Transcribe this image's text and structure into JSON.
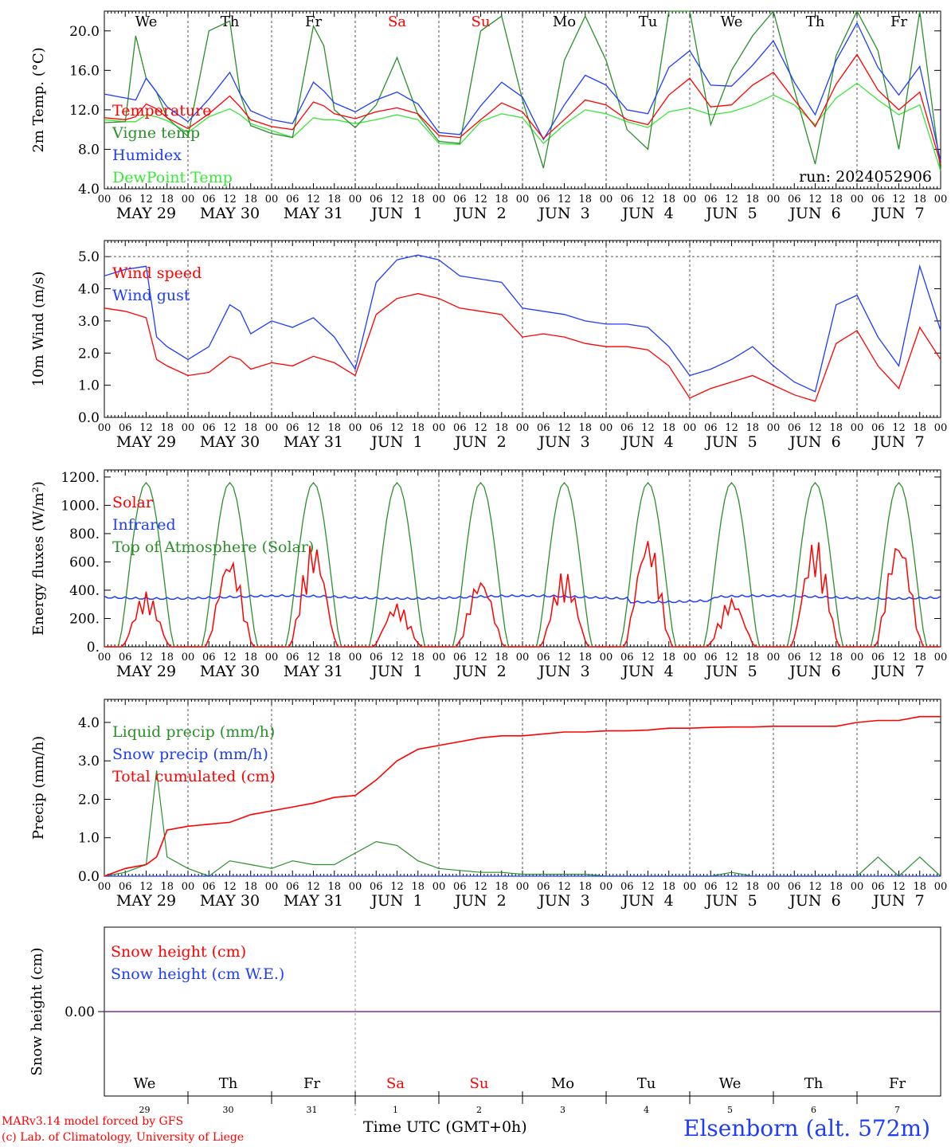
{
  "days": [
    "We",
    "Th",
    "Fr",
    "Sa",
    "Su",
    "Mo",
    "Tu",
    "We",
    "Th",
    "Fr"
  ],
  "day_colors": [
    "#000000",
    "#000000",
    "#000000",
    "#ff0000",
    "#ff0000",
    "#000000",
    "#000000",
    "#000000",
    "#000000",
    "#000000"
  ],
  "dates": [
    "MAY 29",
    "MAY 30",
    "MAY 31",
    "JUN  1",
    "JUN  2",
    "JUN  3",
    "JUN  4",
    "JUN  5",
    "JUN  6",
    "JUN  7"
  ],
  "day_numbers": [
    "29",
    "30",
    "31",
    "1",
    "2",
    "3",
    "4",
    "5",
    "6",
    "7"
  ],
  "hour_labels": [
    "00",
    "06",
    "12",
    "18"
  ],
  "end_hour_label": "00",
  "run_label": "run: 2024052906",
  "footer": {
    "model": "MARv3.14 model forced by GFS",
    "credit": "(c) Lab. of Climatology, University of Liege",
    "xlabel": "Time UTC (GMT+0h)",
    "station": "Elsenborn (alt. 572m)",
    "hidden_month": "JUN"
  },
  "chart_data": [
    {
      "type": "line",
      "ylabel": "2m Temp. (°C)",
      "ylim": [
        4,
        22
      ],
      "yticks": [
        4,
        8,
        12,
        16,
        20
      ],
      "ytick_labels": [
        "4.0",
        "8.0",
        "12.0",
        "16.0",
        "20.0"
      ],
      "x_hours": [
        0,
        6,
        9,
        12,
        15,
        18,
        24,
        30,
        36,
        39,
        42,
        48,
        54,
        60,
        63,
        66,
        72,
        78,
        84,
        90,
        96,
        102,
        108,
        114,
        120,
        126,
        132,
        138,
        144,
        150,
        156,
        162,
        168,
        174,
        180,
        186,
        192,
        198,
        204,
        210,
        216,
        222,
        228,
        234,
        240
      ],
      "series": [
        {
          "name": "Temperature",
          "color": "#ff0000",
          "values": [
            11.2,
            11.0,
            11.3,
            12.6,
            12.1,
            11.2,
            10.1,
            11.6,
            13.4,
            12.3,
            11.0,
            10.3,
            10.0,
            12.8,
            12.4,
            11.6,
            11.1,
            11.8,
            12.2,
            11.6,
            9.4,
            9.2,
            11.0,
            12.7,
            11.8,
            9.1,
            11.0,
            13.0,
            12.5,
            11.0,
            10.5,
            13.5,
            15.2,
            12.3,
            12.5,
            14.5,
            15.8,
            13.0,
            10.3,
            14.6,
            17.6,
            14.0,
            12.0,
            13.8,
            6.5
          ]
        },
        {
          "name": "Vigne temp",
          "color": "#2a8f2a",
          "values": [
            10.7,
            10.8,
            19.5,
            15.2,
            13.8,
            11.2,
            9.3,
            20.0,
            21.0,
            13.6,
            10.4,
            9.6,
            9.2,
            20.5,
            18.5,
            12.0,
            10.2,
            12.5,
            17.3,
            11.5,
            8.8,
            8.6,
            20.0,
            21.5,
            13.0,
            6.1,
            17.0,
            21.5,
            17.0,
            10.0,
            8.0,
            22.0,
            22.0,
            10.5,
            16.0,
            19.5,
            22.0,
            14.0,
            6.5,
            17.5,
            22.0,
            18.0,
            8.0,
            22.0,
            5.8
          ]
        },
        {
          "name": "Humidex",
          "color": "#1e3cff",
          "values": [
            13.6,
            13.2,
            13.0,
            15.2,
            13.8,
            12.3,
            10.8,
            13.1,
            15.8,
            13.6,
            11.9,
            11.0,
            10.6,
            14.8,
            13.9,
            12.7,
            11.8,
            13.0,
            13.8,
            12.6,
            9.7,
            9.5,
            12.4,
            14.8,
            13.3,
            9.0,
            12.5,
            15.5,
            14.5,
            12.0,
            11.6,
            16.3,
            18.0,
            14.5,
            14.4,
            16.5,
            19.0,
            14.8,
            11.5,
            17.0,
            20.8,
            16.3,
            13.5,
            16.4,
            6.8
          ]
        },
        {
          "name": "DewPoint Temp",
          "color": "#38e838",
          "values": [
            11.0,
            10.8,
            10.8,
            11.5,
            11.3,
            10.9,
            9.7,
            11.3,
            12.1,
            11.5,
            10.6,
            9.9,
            9.2,
            11.2,
            11.0,
            11.0,
            10.6,
            11.0,
            11.5,
            11.0,
            8.6,
            8.5,
            10.8,
            11.6,
            11.2,
            8.6,
            10.5,
            12.0,
            11.6,
            10.8,
            10.2,
            11.8,
            12.2,
            11.5,
            11.8,
            12.5,
            13.5,
            12.5,
            10.5,
            13.2,
            14.7,
            13.0,
            11.5,
            12.5,
            5.8
          ]
        }
      ]
    },
    {
      "type": "line",
      "ylabel": "10m Wind (m/s)",
      "ylim": [
        0,
        5.5
      ],
      "yticks": [
        0,
        1,
        2,
        3,
        4,
        5
      ],
      "ytick_labels": [
        "0.0",
        "1.0",
        "2.0",
        "3.0",
        "4.0",
        "5.0"
      ],
      "x_hours": [
        0,
        6,
        12,
        15,
        18,
        24,
        30,
        36,
        39,
        42,
        48,
        54,
        60,
        66,
        72,
        78,
        84,
        90,
        96,
        102,
        108,
        114,
        120,
        126,
        132,
        138,
        144,
        150,
        156,
        162,
        168,
        174,
        180,
        186,
        192,
        198,
        204,
        210,
        216,
        222,
        228,
        234,
        240
      ],
      "series": [
        {
          "name": "Wind speed",
          "color": "#ff0000",
          "values": [
            3.4,
            3.3,
            3.1,
            1.8,
            1.6,
            1.3,
            1.4,
            1.9,
            1.8,
            1.5,
            1.7,
            1.6,
            1.9,
            1.7,
            1.3,
            3.2,
            3.7,
            3.85,
            3.7,
            3.4,
            3.3,
            3.2,
            2.5,
            2.6,
            2.5,
            2.3,
            2.2,
            2.2,
            2.1,
            1.6,
            0.6,
            0.9,
            1.1,
            1.3,
            1.0,
            0.7,
            0.5,
            2.3,
            2.7,
            1.6,
            0.9,
            2.8,
            1.8
          ]
        },
        {
          "name": "Wind gust",
          "color": "#1e3cff",
          "values": [
            4.4,
            4.6,
            4.7,
            2.5,
            2.2,
            1.8,
            2.2,
            3.5,
            3.3,
            2.6,
            3.0,
            2.8,
            3.1,
            2.5,
            1.5,
            4.2,
            4.9,
            5.05,
            4.9,
            4.4,
            4.3,
            4.2,
            3.4,
            3.3,
            3.2,
            3.0,
            2.9,
            2.9,
            2.8,
            2.2,
            1.3,
            1.5,
            1.8,
            2.2,
            1.6,
            1.1,
            0.8,
            3.5,
            3.8,
            2.5,
            1.6,
            4.7,
            2.7
          ]
        }
      ],
      "reference_line": 5.0
    },
    {
      "type": "line",
      "ylabel": "Energy fluxes (W/m²)",
      "ylim": [
        0,
        1250
      ],
      "yticks": [
        0,
        200,
        400,
        600,
        800,
        1000,
        1200
      ],
      "ytick_labels": [
        "0.",
        "200.",
        "400.",
        "600.",
        "800.",
        "1000.",
        "1200."
      ],
      "solar_peaks": [
        390,
        650,
        750,
        310,
        500,
        540,
        800,
        350,
        770,
        790
      ],
      "toa_peak": 1160,
      "infrared_level": 350,
      "series": [
        {
          "name": "Solar",
          "color": "#ff0000"
        },
        {
          "name": "Infrared",
          "color": "#1e3cff"
        },
        {
          "name": "Top of Atmosphere (Solar)",
          "color": "#2a8f2a"
        }
      ]
    },
    {
      "type": "line",
      "ylabel": "Precip (mm/h)",
      "ylim": [
        0,
        4.6
      ],
      "yticks": [
        0,
        1,
        2,
        3,
        4
      ],
      "ytick_labels": [
        "0.0",
        "1.0",
        "2.0",
        "3.0",
        "4.0"
      ],
      "x_hours": [
        0,
        6,
        12,
        15,
        18,
        24,
        30,
        36,
        42,
        48,
        54,
        60,
        66,
        72,
        78,
        84,
        90,
        96,
        102,
        108,
        114,
        120,
        126,
        132,
        138,
        144,
        150,
        156,
        162,
        168,
        174,
        180,
        186,
        192,
        198,
        204,
        210,
        216,
        222,
        228,
        234,
        240
      ],
      "series": [
        {
          "name": "Liquid precip (mm/h)",
          "color": "#2a8f2a",
          "values": [
            0.0,
            0.1,
            0.3,
            2.75,
            0.5,
            0.2,
            0.0,
            0.4,
            0.3,
            0.2,
            0.4,
            0.3,
            0.3,
            0.6,
            0.9,
            0.8,
            0.4,
            0.2,
            0.15,
            0.1,
            0.1,
            0.05,
            0.05,
            0.05,
            0.05,
            0.0,
            0.0,
            0.0,
            0.0,
            0.0,
            0.0,
            0.1,
            0.0,
            0.0,
            0.0,
            0.0,
            0.0,
            0.0,
            0.5,
            0.0,
            0.5,
            0.0
          ]
        },
        {
          "name": "Snow precip (mm/h)",
          "color": "#1e3cff",
          "values": [
            0,
            0,
            0,
            0,
            0,
            0,
            0,
            0,
            0,
            0,
            0,
            0,
            0,
            0,
            0,
            0,
            0,
            0,
            0,
            0,
            0,
            0,
            0,
            0,
            0,
            0,
            0,
            0,
            0,
            0,
            0,
            0,
            0,
            0,
            0,
            0,
            0,
            0,
            0,
            0,
            0,
            0
          ]
        },
        {
          "name": "Total cumulated (cm)",
          "color": "#ff0000",
          "values": [
            0.0,
            0.2,
            0.3,
            0.5,
            1.2,
            1.3,
            1.35,
            1.4,
            1.6,
            1.7,
            1.8,
            1.9,
            2.05,
            2.1,
            2.5,
            3.0,
            3.3,
            3.4,
            3.5,
            3.6,
            3.65,
            3.65,
            3.7,
            3.75,
            3.75,
            3.78,
            3.78,
            3.8,
            3.85,
            3.85,
            3.87,
            3.88,
            3.88,
            3.9,
            3.9,
            3.9,
            3.9,
            4.0,
            4.05,
            4.05,
            4.15,
            4.15
          ]
        }
      ]
    },
    {
      "type": "line",
      "ylabel": "Snow height (cm)",
      "ytick_labels": [
        "0.00"
      ],
      "series": [
        {
          "name": "Snow height (cm)",
          "color": "#ff0000",
          "values": [
            0,
            0
          ]
        },
        {
          "name": "Snow height (cm W.E.)",
          "color": "#1e3cff",
          "values": [
            0,
            0
          ]
        }
      ],
      "line_color": "#7a2ea0"
    }
  ]
}
